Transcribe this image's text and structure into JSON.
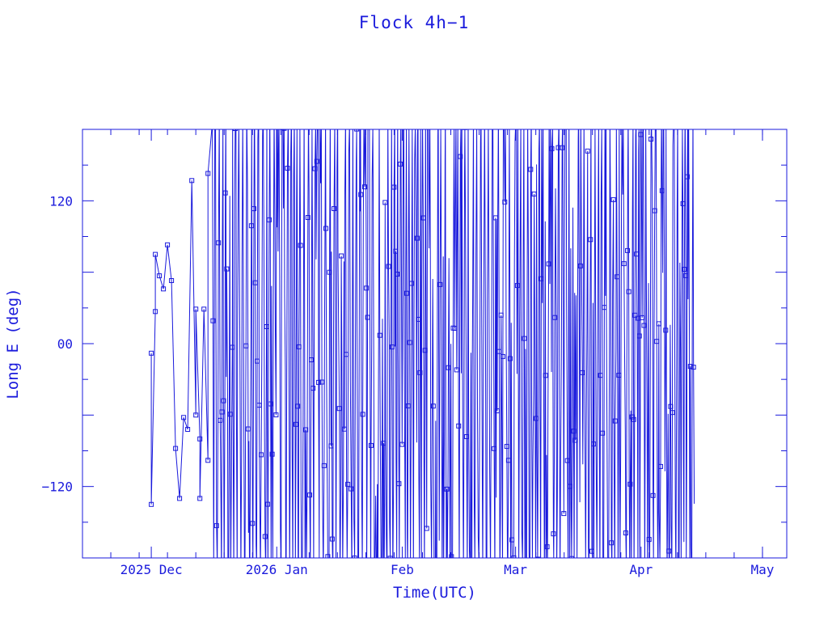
{
  "chart_data": {
    "type": "line",
    "title": "Flock 4h−1",
    "xlabel": "Time(UTC)",
    "ylabel": "Long E (deg)",
    "ylim": [
      -180,
      180
    ],
    "xlim": [
      "2025-11-14",
      "2026-05-07"
    ],
    "yticks": [
      {
        "value": 120,
        "label": "120"
      },
      {
        "value": 0,
        "label": "00"
      },
      {
        "value": -120,
        "label": "−120"
      }
    ],
    "xticks": [
      {
        "date": "2025-12-01",
        "label": "2025 Dec"
      },
      {
        "date": "2026-01-01",
        "label": "2026 Jan"
      },
      {
        "date": "2026-02-01",
        "label": "Feb"
      },
      {
        "date": "2026-03-01",
        "label": "Mar"
      },
      {
        "date": "2026-04-01",
        "label": "Apr"
      },
      {
        "date": "2026-05-01",
        "label": "May"
      }
    ],
    "color": "#1a1adc",
    "series": [
      {
        "marker": "square",
        "points": [
          [
            "2025-12-01",
            -8
          ],
          [
            "2025-12-01",
            -135
          ],
          [
            "2025-12-02",
            27
          ],
          [
            "2025-12-02",
            75
          ],
          [
            "2025-12-03",
            57
          ],
          [
            "2025-12-04",
            46
          ],
          [
            "2025-12-05",
            83
          ],
          [
            "2025-12-06",
            53
          ],
          [
            "2025-12-07",
            -88
          ],
          [
            "2025-12-08",
            -130
          ],
          [
            "2025-12-09",
            -62
          ],
          [
            "2025-12-10",
            -72
          ],
          [
            "2025-12-11",
            137
          ],
          [
            "2025-12-12",
            -60
          ],
          [
            "2025-12-12",
            29
          ],
          [
            "2025-12-13",
            -80
          ],
          [
            "2025-12-13",
            -130
          ],
          [
            "2025-12-14",
            29
          ],
          [
            "2025-12-15",
            -98
          ],
          [
            "2025-12-15",
            143
          ]
        ]
      }
    ],
    "end_date": "2026-04-14"
  }
}
